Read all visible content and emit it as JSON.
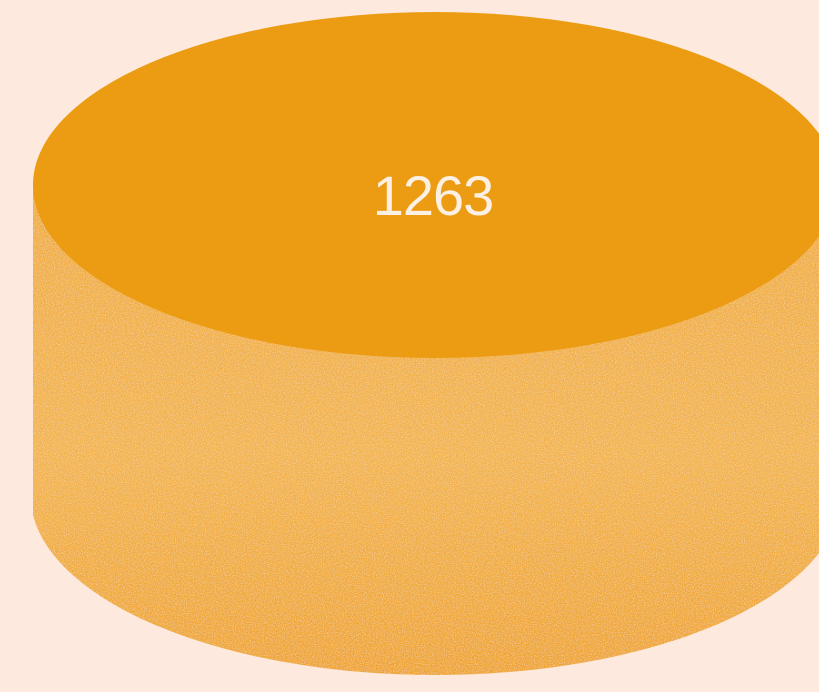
{
  "cylinder": {
    "value": "1263",
    "top_color": "#ec9c12",
    "side_color": "#f0ab3a",
    "label_color": "#fcefe4",
    "background_color": "#fde9dd"
  }
}
